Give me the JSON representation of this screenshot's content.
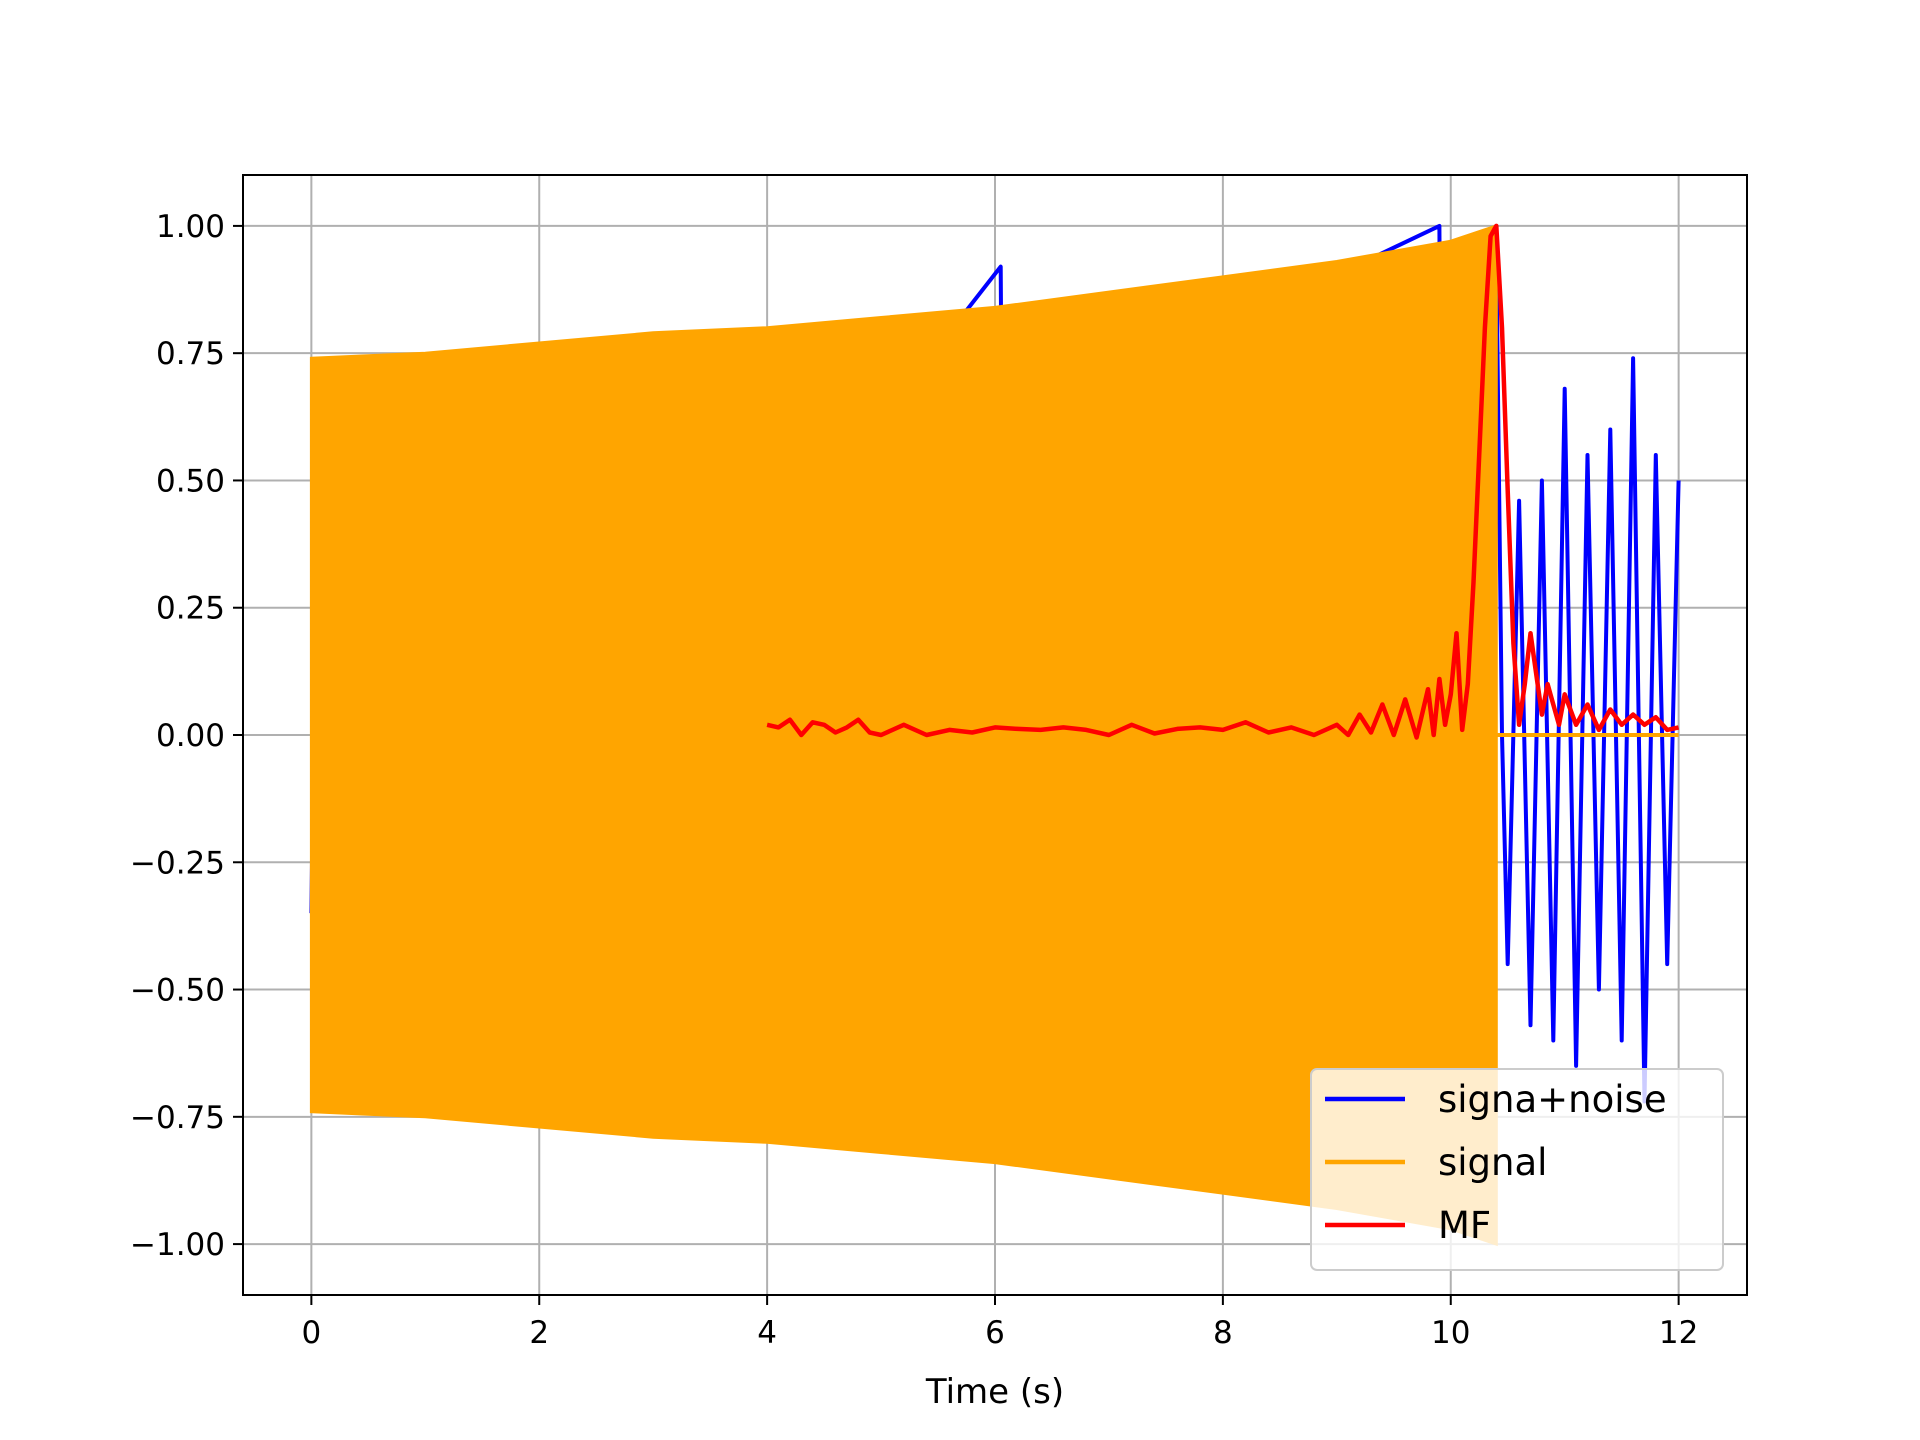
{
  "chart_data": {
    "type": "line",
    "title": "",
    "xlabel": "Time (s)",
    "ylabel": "",
    "xlim": [
      -0.6,
      12.6
    ],
    "ylim": [
      -1.1,
      1.1
    ],
    "xticks": [
      0,
      2,
      4,
      6,
      8,
      10,
      12
    ],
    "xtick_labels": [
      "0",
      "2",
      "4",
      "6",
      "8",
      "10",
      "12"
    ],
    "yticks": [
      -1.0,
      -0.75,
      -0.5,
      -0.25,
      0.0,
      0.25,
      0.5,
      0.75,
      1.0
    ],
    "ytick_labels": [
      "−1.00",
      "−0.75",
      "−0.50",
      "−0.25",
      "0.00",
      "0.25",
      "0.50",
      "0.75",
      "1.00"
    ],
    "grid": true,
    "legend_position": "lower-right",
    "series": [
      {
        "name": "signa+noise",
        "color": "#0000ff",
        "x": [
          0.0,
          0.05,
          0.1,
          0.15,
          0.2,
          0.3,
          0.4,
          6.05,
          6.1,
          6.15,
          9.9,
          9.95,
          10.0,
          10.2,
          10.4,
          10.45,
          10.5,
          10.6,
          10.7,
          10.8,
          10.9,
          11.0,
          11.1,
          11.2,
          11.3,
          11.4,
          11.5,
          11.6,
          11.7,
          11.8,
          11.9,
          12.0
        ],
        "y": [
          -0.35,
          0.62,
          -0.7,
          0.5,
          -0.6,
          0.55,
          -0.7,
          0.92,
          -0.8,
          0.6,
          1.0,
          -0.9,
          0.95,
          -0.9,
          0.95,
          0.0,
          -0.45,
          0.46,
          -0.57,
          0.5,
          -0.6,
          0.68,
          -0.65,
          0.55,
          -0.5,
          0.6,
          -0.6,
          0.74,
          -0.72,
          0.55,
          -0.45,
          0.5
        ]
      },
      {
        "name": "signal",
        "color": "#ffa500",
        "envelope_x": [
          0.0,
          1.0,
          2.0,
          3.0,
          4.0,
          5.0,
          6.0,
          7.0,
          8.0,
          9.0,
          10.0,
          10.4
        ],
        "envelope_y": [
          0.74,
          0.75,
          0.77,
          0.79,
          0.8,
          0.82,
          0.84,
          0.87,
          0.9,
          0.93,
          0.97,
          1.0
        ],
        "end_x": 10.4,
        "flat_x": [
          10.4,
          12.0
        ],
        "flat_y": [
          0.0,
          0.0
        ]
      },
      {
        "name": "MF",
        "color": "#ff0000",
        "x": [
          4.0,
          4.1,
          4.2,
          4.3,
          4.4,
          4.5,
          4.6,
          4.7,
          4.8,
          4.9,
          5.0,
          5.2,
          5.4,
          5.6,
          5.8,
          6.0,
          6.2,
          6.4,
          6.6,
          6.8,
          7.0,
          7.2,
          7.4,
          7.6,
          7.8,
          8.0,
          8.2,
          8.4,
          8.6,
          8.8,
          9.0,
          9.1,
          9.2,
          9.3,
          9.4,
          9.5,
          9.6,
          9.7,
          9.8,
          9.85,
          9.9,
          9.95,
          10.0,
          10.05,
          10.1,
          10.15,
          10.2,
          10.25,
          10.3,
          10.35,
          10.4,
          10.45,
          10.5,
          10.55,
          10.6,
          10.65,
          10.7,
          10.75,
          10.8,
          10.85,
          10.9,
          10.95,
          11.0,
          11.1,
          11.2,
          11.3,
          11.4,
          11.5,
          11.6,
          11.7,
          11.8,
          11.9,
          12.0
        ],
        "y": [
          0.02,
          0.015,
          0.03,
          0.0,
          0.025,
          0.02,
          0.005,
          0.015,
          0.03,
          0.005,
          0.0,
          0.02,
          0.0,
          0.01,
          0.005,
          0.015,
          0.012,
          0.01,
          0.015,
          0.01,
          0.0,
          0.02,
          0.003,
          0.012,
          0.015,
          0.01,
          0.025,
          0.005,
          0.015,
          0.0,
          0.02,
          0.0,
          0.04,
          0.005,
          0.06,
          0.0,
          0.07,
          -0.005,
          0.09,
          0.0,
          0.11,
          0.02,
          0.08,
          0.2,
          0.01,
          0.1,
          0.3,
          0.55,
          0.8,
          0.98,
          1.0,
          0.8,
          0.48,
          0.18,
          0.02,
          0.1,
          0.2,
          0.12,
          0.04,
          0.1,
          0.06,
          0.02,
          0.08,
          0.02,
          0.06,
          0.01,
          0.05,
          0.02,
          0.04,
          0.02,
          0.035,
          0.01,
          0.015
        ]
      }
    ]
  }
}
